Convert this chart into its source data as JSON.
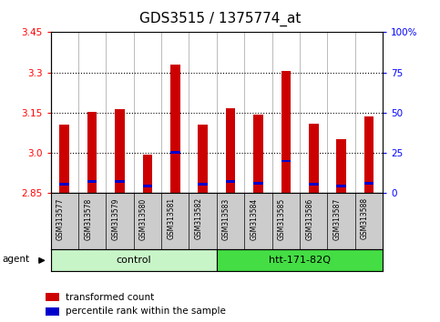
{
  "title": "GDS3515 / 1375774_at",
  "samples": [
    "GSM313577",
    "GSM313578",
    "GSM313579",
    "GSM313580",
    "GSM313581",
    "GSM313582",
    "GSM313583",
    "GSM313584",
    "GSM313585",
    "GSM313586",
    "GSM313587",
    "GSM313588"
  ],
  "bar_values": [
    3.105,
    3.152,
    3.162,
    2.993,
    3.328,
    3.106,
    3.165,
    3.143,
    3.305,
    3.108,
    3.052,
    3.135
  ],
  "percentile_values": [
    2.883,
    2.893,
    2.893,
    2.876,
    3.003,
    2.883,
    2.893,
    2.887,
    2.97,
    2.883,
    2.876,
    2.886
  ],
  "ymin": 2.85,
  "ymax": 3.45,
  "y_ticks_left": [
    2.85,
    3.0,
    3.15,
    3.3,
    3.45
  ],
  "y_ticks_right_vals": [
    2.85,
    3.0,
    3.15,
    3.3,
    3.45
  ],
  "y_ticks_right_labels": [
    "0",
    "25",
    "50",
    "75",
    "100%"
  ],
  "bar_color": "#cc0000",
  "percentile_color": "#0000cc",
  "bar_bottom": 2.85,
  "ctrl_color": "#c8f5c8",
  "htt_color": "#44dd44",
  "agent_label": "agent",
  "legend_items": [
    {
      "label": "transformed count",
      "color": "#cc0000"
    },
    {
      "label": "percentile rank within the sample",
      "color": "#0000cc"
    }
  ],
  "title_fontsize": 11
}
